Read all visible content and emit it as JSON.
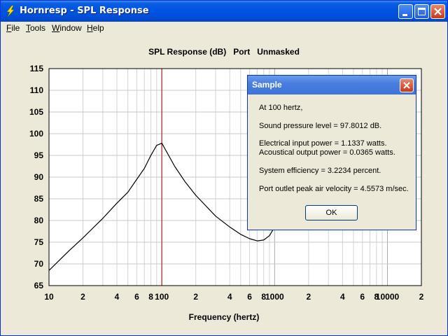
{
  "window": {
    "title": "Hornresp - SPL Response",
    "icon": "lightning-bolt-icon"
  },
  "menu": {
    "items": [
      {
        "label": "File",
        "accel": "F",
        "rest": "ile"
      },
      {
        "label": "Tools",
        "accel": "T",
        "rest": "ools"
      },
      {
        "label": "Window",
        "accel": "W",
        "rest": "indow"
      },
      {
        "label": "Help",
        "accel": "H",
        "rest": "elp"
      }
    ]
  },
  "chart": {
    "title": "SPL Response (dB)   Port   Unmasked",
    "xlabel": "Frequency (hertz)"
  },
  "chart_data": {
    "type": "line",
    "title": "SPL Response (dB)   Port   Unmasked",
    "xlabel": "Frequency (hertz)",
    "ylabel": "",
    "x_scale": "log",
    "xlim": [
      10,
      20000
    ],
    "ylim": [
      65,
      115
    ],
    "yticks": [
      115,
      110,
      105,
      100,
      95,
      90,
      85,
      80,
      75,
      70,
      65
    ],
    "xtick_labels": [
      {
        "value": 10,
        "label": "10"
      },
      {
        "value": 20,
        "label": "2"
      },
      {
        "value": 40,
        "label": "4"
      },
      {
        "value": 60,
        "label": "6"
      },
      {
        "value": 80,
        "label": "8"
      },
      {
        "value": 100,
        "label": "100"
      },
      {
        "value": 200,
        "label": "2"
      },
      {
        "value": 400,
        "label": "4"
      },
      {
        "value": 600,
        "label": "6"
      },
      {
        "value": 800,
        "label": "8"
      },
      {
        "value": 1000,
        "label": "1000"
      },
      {
        "value": 2000,
        "label": "2"
      },
      {
        "value": 4000,
        "label": "4"
      },
      {
        "value": 6000,
        "label": "6"
      },
      {
        "value": 8000,
        "label": "8"
      },
      {
        "value": 10000,
        "label": "10000"
      },
      {
        "value": 20000,
        "label": "2"
      }
    ],
    "grid": true,
    "marker_frequency": 100,
    "marker_color": "#b22222",
    "series": [
      {
        "color": "#000000",
        "x": [
          10,
          15,
          20,
          30,
          40,
          50,
          60,
          70,
          80,
          90,
          100,
          115,
          130,
          160,
          200,
          300,
          400,
          500,
          600,
          700,
          800,
          900,
          1000
        ],
        "y": [
          68.5,
          73,
          76,
          80.5,
          84,
          86.5,
          89.5,
          92,
          95,
          97.3,
          97.8,
          95,
          92.5,
          89,
          85.8,
          81,
          78.5,
          76.8,
          75.8,
          75.3,
          75.5,
          76.5,
          78.5
        ]
      }
    ]
  },
  "dialog": {
    "title": "Sample",
    "lines": [
      "At 100 hertz,",
      "Sound pressure level = 97.8012 dB.",
      "Electrical input power = 1.1337 watts.",
      "Acoustical output power = 0.0365 watts.",
      "System efficiency = 3.2234 percent.",
      "Port outlet peak air velocity = 4.5573 m/sec."
    ],
    "ok_label": "OK"
  }
}
